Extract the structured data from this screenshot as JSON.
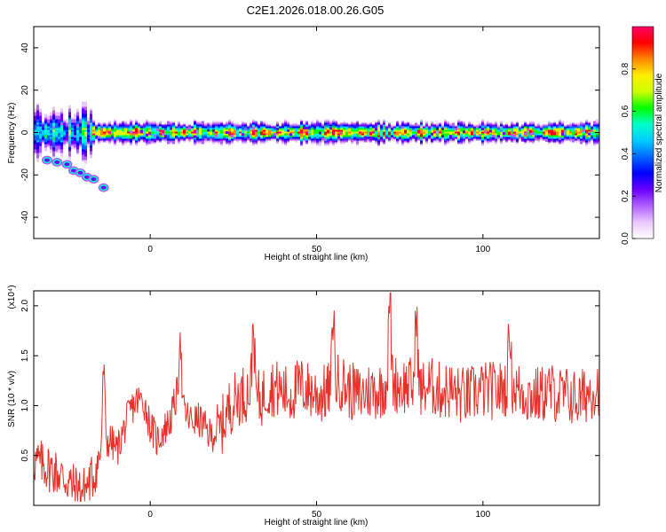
{
  "title": "C2E1.2026.018.00.26.G05",
  "chart_data": [
    {
      "type": "heatmap",
      "panel": "spectrogram",
      "xlabel": "Height of straight line (km)",
      "ylabel": "Frequency (Hz)",
      "xlim": [
        -35,
        135
      ],
      "ylim": [
        -50,
        50
      ],
      "xticks": [
        0,
        50,
        100
      ],
      "yticks": [
        -40,
        -20,
        0,
        20,
        40
      ],
      "ytick_labels": [
        "-40",
        "-20",
        "0",
        "20",
        "40"
      ],
      "main_ridge_freq": 0,
      "side_track": {
        "x": [
          -31,
          -28,
          -25,
          -23,
          -21,
          -19,
          -17,
          -14
        ],
        "y": [
          -13,
          -14,
          -15,
          -18,
          -19,
          -21,
          -22,
          -26
        ]
      },
      "colorbar": {
        "label": "Normalized spectral amplitude",
        "range": [
          0,
          1
        ],
        "ticks": [
          0.0,
          0.2,
          0.4,
          0.6,
          0.8
        ],
        "tick_labels": [
          "0.0",
          "0.2",
          "0.4",
          "0.6",
          "0.8"
        ],
        "colors": [
          "#ffffff",
          "#e9c7ff",
          "#b060ff",
          "#6a00ff",
          "#0000ff",
          "#0066ff",
          "#00ccff",
          "#00ffcc",
          "#00ff00",
          "#ccff00",
          "#ffee00",
          "#ff8800",
          "#ff0000",
          "#ff0066"
        ]
      }
    },
    {
      "type": "line",
      "panel": "snr",
      "xlabel": "Height of straight line (km)",
      "ylabel": "SNR (10 * v/v)",
      "scale_label": "(x10⁴)",
      "xlim": [
        -35,
        135
      ],
      "ylim": [
        0,
        2.15
      ],
      "xticks": [
        0,
        50,
        100
      ],
      "yticks": [
        0.5,
        1.0,
        1.5,
        2.0
      ],
      "ytick_labels": [
        "0.5",
        "1.0",
        "1.5",
        "2.0"
      ],
      "line_color": "#e8302a",
      "series": [
        {
          "name": "SNR",
          "x": [
            -35,
            -32,
            -29,
            -26,
            -23,
            -20,
            -17,
            -14,
            -12,
            -10,
            -8,
            -6,
            -4,
            -2,
            0,
            2,
            4,
            6,
            8,
            10,
            12,
            15,
            18,
            21,
            24,
            27,
            30,
            33,
            36,
            39,
            42,
            45,
            48,
            51,
            54,
            57,
            60,
            63,
            66,
            69,
            72,
            75,
            78,
            81,
            84,
            87,
            90,
            93,
            96,
            99,
            102,
            105,
            108,
            111,
            114,
            117,
            120,
            123,
            126,
            129,
            132,
            135
          ],
          "values": [
            0.45,
            0.4,
            0.35,
            0.28,
            0.18,
            0.15,
            0.3,
            0.6,
            0.65,
            0.55,
            0.75,
            0.95,
            1.05,
            1.05,
            0.8,
            0.65,
            0.75,
            0.85,
            1.1,
            0.95,
            0.85,
            0.85,
            0.7,
            0.75,
            1.0,
            1.1,
            1.15,
            1.05,
            1.2,
            1.15,
            1.1,
            1.2,
            1.15,
            1.1,
            1.15,
            1.25,
            1.15,
            1.1,
            1.15,
            1.15,
            1.25,
            1.2,
            1.2,
            1.15,
            1.2,
            1.15,
            1.15,
            1.1,
            1.1,
            1.15,
            1.15,
            1.15,
            1.2,
            1.15,
            1.1,
            1.1,
            1.15,
            1.1,
            1.1,
            1.05,
            1.15,
            1.2
          ]
        }
      ],
      "peaks": [
        {
          "x": -14,
          "value": 1.37
        },
        {
          "x": 9,
          "value": 1.75
        },
        {
          "x": 31,
          "value": 1.85
        },
        {
          "x": 55,
          "value": 1.95
        },
        {
          "x": 72,
          "value": 2.12
        },
        {
          "x": 80,
          "value": 1.98
        },
        {
          "x": 108,
          "value": 1.82
        }
      ]
    }
  ]
}
